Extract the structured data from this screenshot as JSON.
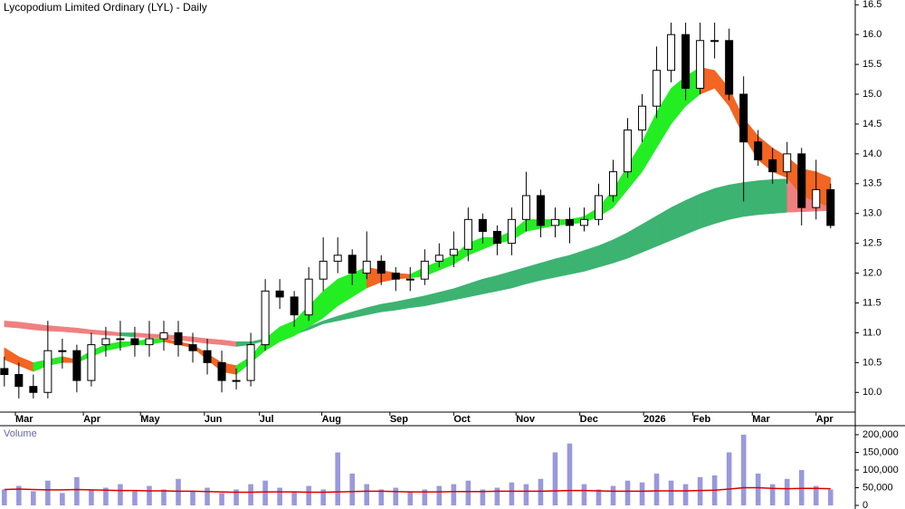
{
  "chart_data": [
    {
      "type": "candlestick",
      "title": "Lycopodium Limited Ordinary (LYL) - Daily",
      "x": [
        0,
        1,
        2,
        3,
        4,
        5,
        6,
        7,
        8,
        9,
        10,
        11,
        12,
        13,
        14,
        15,
        16,
        17,
        18,
        19,
        20,
        21,
        22,
        23,
        24,
        25,
        26,
        27,
        28,
        29,
        30,
        31,
        32,
        33,
        34,
        35,
        36,
        37,
        38,
        39,
        40,
        41,
        42,
        43,
        44,
        45,
        46,
        47,
        48,
        49,
        50,
        51,
        52,
        53,
        54,
        55,
        56,
        57
      ],
      "open": [
        10.4,
        10.3,
        10.1,
        10.0,
        10.7,
        10.7,
        10.2,
        10.8,
        10.9,
        10.9,
        10.8,
        10.9,
        11.0,
        10.8,
        10.7,
        10.5,
        10.2,
        10.2,
        10.8,
        11.7,
        11.6,
        11.3,
        11.9,
        12.2,
        12.3,
        12.0,
        12.2,
        12.0,
        11.9,
        11.9,
        12.2,
        12.3,
        12.4,
        12.9,
        12.7,
        12.5,
        12.9,
        13.3,
        12.8,
        12.9,
        12.8,
        12.9,
        13.3,
        13.7,
        14.4,
        14.8,
        15.4,
        16.0,
        15.1,
        15.9,
        15.9,
        15.0,
        14.2,
        13.9,
        13.7,
        14.0,
        13.1,
        13.4
      ],
      "high": [
        10.6,
        10.5,
        10.3,
        11.2,
        10.9,
        10.8,
        11.0,
        11.1,
        11.2,
        11.1,
        11.2,
        11.2,
        11.2,
        11.0,
        10.9,
        10.7,
        10.4,
        11.0,
        11.9,
        11.9,
        11.7,
        12.1,
        12.6,
        12.6,
        12.4,
        12.7,
        12.3,
        12.1,
        12.1,
        12.4,
        12.5,
        12.7,
        13.1,
        13.0,
        12.8,
        13.1,
        13.7,
        13.4,
        13.1,
        13.1,
        13.1,
        13.5,
        13.9,
        14.6,
        15.0,
        15.8,
        16.2,
        16.2,
        16.2,
        16.2,
        16.1,
        15.3,
        14.4,
        14.1,
        14.2,
        14.1,
        13.9,
        13.5
      ],
      "low": [
        10.1,
        9.9,
        9.9,
        9.9,
        10.4,
        10.0,
        10.1,
        10.6,
        10.7,
        10.6,
        10.6,
        10.7,
        10.6,
        10.5,
        10.3,
        10.0,
        10.05,
        10.1,
        10.7,
        11.4,
        11.1,
        11.2,
        11.7,
        12.0,
        11.8,
        11.9,
        11.8,
        11.7,
        11.7,
        11.8,
        12.1,
        12.1,
        12.2,
        12.5,
        12.3,
        12.3,
        12.7,
        12.6,
        12.6,
        12.5,
        12.7,
        12.8,
        13.2,
        13.6,
        14.2,
        14.6,
        15.2,
        14.9,
        15.0,
        15.6,
        14.9,
        13.2,
        13.8,
        13.5,
        13.5,
        12.8,
        12.9,
        12.75
      ],
      "close": [
        10.3,
        10.1,
        10.0,
        10.7,
        10.7,
        10.2,
        10.8,
        10.9,
        10.9,
        10.8,
        10.9,
        11.0,
        10.8,
        10.7,
        10.5,
        10.2,
        10.2,
        10.8,
        11.7,
        11.6,
        11.3,
        11.9,
        12.2,
        12.3,
        12.0,
        12.2,
        12.0,
        11.9,
        11.9,
        12.2,
        12.3,
        12.4,
        12.9,
        12.7,
        12.5,
        12.9,
        13.3,
        12.8,
        12.9,
        12.8,
        12.9,
        13.3,
        13.7,
        14.4,
        14.8,
        15.4,
        16.0,
        15.1,
        15.9,
        15.9,
        15.0,
        14.2,
        13.9,
        13.7,
        14.0,
        13.1,
        13.4,
        12.8
      ],
      "bands": [
        {
          "upper": [
            10.75,
            10.6,
            10.5,
            10.55,
            10.6,
            10.55,
            10.7,
            10.8,
            10.85,
            10.85,
            10.9,
            10.9,
            10.85,
            10.8,
            10.65,
            10.5,
            10.45,
            10.6,
            10.9,
            11.1,
            11.2,
            11.45,
            11.7,
            11.9,
            12.0,
            12.1,
            12.05,
            12.0,
            11.98,
            12.1,
            12.2,
            12.3,
            12.5,
            12.6,
            12.6,
            12.7,
            12.9,
            12.9,
            12.9,
            12.9,
            12.95,
            13.1,
            13.4,
            13.8,
            14.2,
            14.7,
            15.1,
            15.3,
            15.45,
            15.4,
            15.1,
            14.6,
            14.3,
            14.1,
            13.95,
            13.75,
            13.7,
            13.6
          ],
          "lower": [
            10.55,
            10.45,
            10.35,
            10.45,
            10.5,
            10.5,
            10.6,
            10.7,
            10.75,
            10.8,
            10.8,
            10.85,
            10.8,
            10.75,
            10.55,
            10.35,
            10.3,
            10.5,
            10.7,
            10.85,
            10.95,
            11.1,
            11.25,
            11.45,
            11.6,
            11.75,
            11.85,
            11.9,
            11.92,
            11.95,
            12.05,
            12.15,
            12.3,
            12.4,
            12.5,
            12.55,
            12.7,
            12.75,
            12.8,
            12.82,
            12.85,
            12.95,
            13.1,
            13.4,
            13.7,
            14.1,
            14.5,
            14.8,
            15.0,
            15.1,
            14.8,
            14.3,
            13.9,
            13.7,
            13.6,
            13.3,
            13.2,
            13.1
          ],
          "rise_color": "#22ee22",
          "fall_color": "#f26522"
        },
        {
          "upper": [
            11.2,
            11.18,
            11.15,
            11.12,
            11.1,
            11.08,
            11.05,
            11.03,
            11.0,
            11.0,
            10.98,
            10.97,
            10.95,
            10.93,
            10.9,
            10.88,
            10.85,
            10.85,
            10.9,
            10.95,
            11.0,
            11.1,
            11.2,
            11.28,
            11.35,
            11.42,
            11.48,
            11.52,
            11.57,
            11.62,
            11.68,
            11.74,
            11.82,
            11.9,
            11.96,
            12.03,
            12.1,
            12.17,
            12.24,
            12.3,
            12.38,
            12.46,
            12.56,
            12.68,
            12.82,
            12.96,
            13.1,
            13.22,
            13.33,
            13.42,
            13.48,
            13.52,
            13.55,
            13.57,
            13.58,
            13.57,
            13.55,
            13.53
          ],
          "lower": [
            11.1,
            11.08,
            11.05,
            11.03,
            11.02,
            11.0,
            10.98,
            10.96,
            10.95,
            10.93,
            10.92,
            10.9,
            10.88,
            10.85,
            10.82,
            10.8,
            10.77,
            10.8,
            10.87,
            10.92,
            10.97,
            11.05,
            11.15,
            11.2,
            11.25,
            11.3,
            11.35,
            11.38,
            11.42,
            11.45,
            11.5,
            11.55,
            11.6,
            11.65,
            11.7,
            11.75,
            11.82,
            11.88,
            11.93,
            11.98,
            12.03,
            12.1,
            12.17,
            12.25,
            12.35,
            12.45,
            12.55,
            12.65,
            12.75,
            12.83,
            12.9,
            12.95,
            12.98,
            13.0,
            13.02,
            13.03,
            13.04,
            13.05
          ],
          "rise_color": "#3cb371",
          "fall_color": "#f08080"
        }
      ],
      "up_color": "#ffffff",
      "down_color": "#000000",
      "xlim": [
        -0.3,
        58.7
      ],
      "xticks": [
        {
          "value": 0.76,
          "label": "Mar"
        },
        {
          "value": 5.45,
          "label": "Apr"
        },
        {
          "value": 9.39,
          "label": "May"
        },
        {
          "value": 13.8,
          "label": "Jun"
        },
        {
          "value": 17.6,
          "label": "Jul"
        },
        {
          "value": 21.9,
          "label": "Aug"
        },
        {
          "value": 26.6,
          "label": "Sep"
        },
        {
          "value": 31,
          "label": "Oct"
        },
        {
          "value": 35.3,
          "label": "Nov"
        },
        {
          "value": 39.7,
          "label": "Dec"
        },
        {
          "value": 44.1,
          "label": "2026"
        },
        {
          "value": 47.5,
          "label": "Feb"
        },
        {
          "value": 51.6,
          "label": "Mar"
        },
        {
          "value": 56,
          "label": "Apr"
        }
      ],
      "ylim": [
        9.67,
        16.58
      ],
      "yticks": [
        {
          "value": 10,
          "label": "10.0"
        },
        10.5,
        {
          "value": 11,
          "label": "11.0"
        },
        11.5,
        {
          "value": 12,
          "label": "12.0"
        },
        12.5,
        {
          "value": 13,
          "label": "13.0"
        },
        13.5,
        {
          "value": 14,
          "label": "14.0"
        },
        14.5,
        {
          "value": 15,
          "label": "15.0"
        },
        15.5,
        {
          "value": 16,
          "label": "16.0"
        },
        16.5
      ]
    },
    {
      "type": "bar",
      "title": "Volume",
      "x": [
        0,
        1,
        2,
        3,
        4,
        5,
        6,
        7,
        8,
        9,
        10,
        11,
        12,
        13,
        14,
        15,
        16,
        17,
        18,
        19,
        20,
        21,
        22,
        23,
        24,
        25,
        26,
        27,
        28,
        29,
        30,
        31,
        32,
        33,
        34,
        35,
        36,
        37,
        38,
        39,
        40,
        41,
        42,
        43,
        44,
        45,
        46,
        47,
        48,
        49,
        50,
        51,
        52,
        53,
        54,
        55,
        56,
        57
      ],
      "values": [
        45000,
        55000,
        40000,
        70000,
        35000,
        80000,
        45000,
        50000,
        60000,
        40000,
        55000,
        45000,
        75000,
        40000,
        50000,
        35000,
        45000,
        60000,
        70000,
        50000,
        40000,
        55000,
        45000,
        150000,
        90000,
        60000,
        45000,
        50000,
        40000,
        45000,
        55000,
        60000,
        70000,
        45000,
        50000,
        65000,
        60000,
        75000,
        150000,
        175000,
        60000,
        45000,
        55000,
        70000,
        65000,
        90000,
        70000,
        60000,
        80000,
        85000,
        150000,
        200000,
        90000,
        60000,
        75000,
        100000,
        55000,
        45000
      ],
      "color": "#9999dd",
      "average": [
        45000,
        46000,
        45000,
        44000,
        44000,
        45000,
        44000,
        43000,
        42000,
        42000,
        41000,
        41000,
        40000,
        40000,
        39000,
        38000,
        37000,
        37000,
        38000,
        38000,
        38000,
        37000,
        37000,
        38000,
        39000,
        40000,
        40000,
        39000,
        38000,
        38000,
        38000,
        39000,
        39000,
        39000,
        40000,
        40000,
        40000,
        40000,
        41000,
        42000,
        42000,
        41000,
        40000,
        40000,
        40000,
        41000,
        41000,
        41000,
        42000,
        43000,
        46000,
        50000,
        50000,
        48000,
        47000,
        48000,
        48000,
        47000
      ],
      "average_color": "#dd0000",
      "xlim": [
        -0.3,
        58.7
      ],
      "ylim": [
        0,
        205000
      ],
      "yticks": [
        0,
        {
          "value": 50000,
          "label": "50,000"
        },
        {
          "value": 100000,
          "label": "100,000"
        },
        {
          "value": 150000,
          "label": "150,000"
        },
        {
          "value": 200000,
          "label": "200,000"
        }
      ]
    }
  ]
}
